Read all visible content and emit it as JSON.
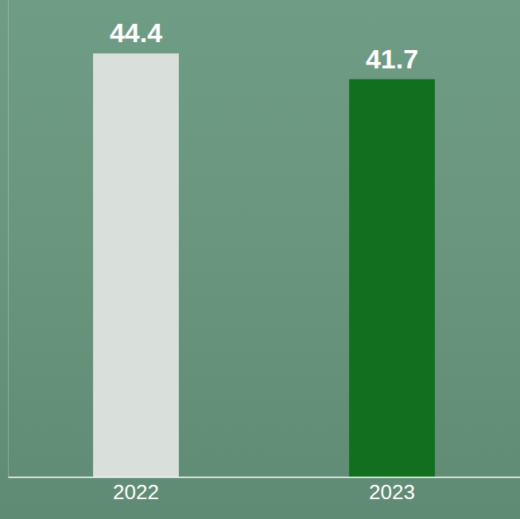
{
  "chart_data": {
    "type": "bar",
    "categories": [
      "2022",
      "2023"
    ],
    "values": [
      44.4,
      41.7
    ],
    "colors": [
      "#d9e0db",
      "#107020"
    ],
    "ylim": [
      0,
      50
    ],
    "data_labels": true,
    "tick_labels": "x"
  }
}
